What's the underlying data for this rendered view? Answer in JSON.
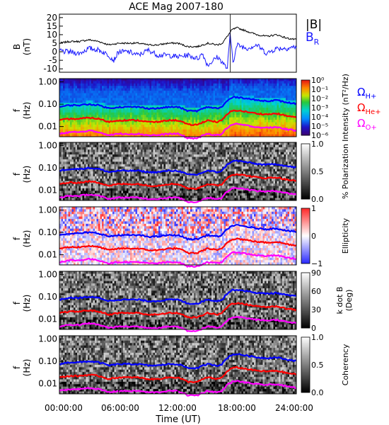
{
  "figure": {
    "title": "ACE Mag 2007-180",
    "xlabel": "Time (UT)",
    "xticks": [
      "00:00:00",
      "06:00:00",
      "12:00:00",
      "18:00:00",
      "24:00:00"
    ]
  },
  "chart_data": [
    {
      "type": "line",
      "panel": "magnetic-field",
      "ylabel_top": "B",
      "ylabel_bottom": "(nT)",
      "yticks": [
        "20",
        "15",
        "10",
        "5",
        "0",
        "-5",
        "-10"
      ],
      "ylim": [
        -12,
        22
      ],
      "xlim": [
        0,
        24
      ],
      "series": [
        {
          "name": "|B|",
          "color": "#000000",
          "x": [
            0,
            1,
            2,
            3,
            4,
            5,
            6,
            7,
            8,
            9,
            10,
            11,
            12,
            13,
            14,
            15,
            16,
            16.5,
            17,
            17.5,
            18,
            19,
            20,
            21,
            22,
            23,
            24
          ],
          "values": [
            5,
            6,
            6,
            7,
            6,
            4,
            5,
            5,
            5,
            4,
            4,
            5,
            5,
            3,
            3,
            5,
            4,
            5,
            9,
            13,
            14,
            12,
            10,
            9,
            10,
            8,
            7
          ]
        },
        {
          "name": "B",
          "name_sub": "R",
          "color": "#1a1aff",
          "x": [
            0,
            0.5,
            1,
            2,
            3,
            4,
            5,
            5.5,
            6,
            7,
            8,
            9,
            10,
            11,
            12,
            13,
            14,
            14.5,
            15,
            16,
            16.5,
            17,
            17.3,
            17.6,
            18,
            19,
            20,
            21,
            22,
            23,
            24
          ],
          "values": [
            1,
            0,
            0,
            -1,
            2,
            1,
            -2,
            -5,
            0,
            0,
            -2,
            1,
            -2,
            -2,
            -3,
            -2,
            -4,
            -1,
            -8,
            -3,
            -6,
            -10,
            10,
            -6,
            4,
            2,
            4,
            -1,
            2,
            2,
            3
          ]
        }
      ]
    },
    {
      "type": "heatmap",
      "panel": "power-spectrum",
      "colormap": "rainbow",
      "ylabel_top": "f",
      "ylabel_bottom": "(Hz)",
      "yticks": [
        "1.00",
        "0.10",
        "0.01"
      ],
      "colorbar_label": "Intensity (nT²/Hz)",
      "colorbar_ticks": [
        "10⁰",
        "10⁻¹",
        "10⁻²",
        "10⁻³",
        "10⁻⁴",
        "10⁻⁵",
        "10⁻⁶"
      ],
      "gyro_labels": [
        {
          "symbol": "Ω",
          "sub": "H+",
          "color": "#0000ff"
        },
        {
          "symbol": "Ω",
          "sub": "He+",
          "color": "#ff0000"
        },
        {
          "symbol": "Ω",
          "sub": "O+",
          "color": "#ff00ff"
        }
      ]
    },
    {
      "type": "heatmap",
      "panel": "polarization",
      "colormap": "gray",
      "ylabel_top": "f",
      "ylabel_bottom": "(Hz)",
      "yticks": [
        "1.00",
        "0.10",
        "0.01"
      ],
      "colorbar_label": "% Polarization",
      "colorbar_ticks": [
        "1.0",
        "0.5",
        "0.0"
      ]
    },
    {
      "type": "heatmap",
      "panel": "ellipticity",
      "colormap": "bluered",
      "ylabel_top": "f",
      "ylabel_bottom": "(Hz)",
      "yticks": [
        "1.00",
        "0.10",
        "0.01"
      ],
      "colorbar_label": "Ellipticity",
      "colorbar_ticks": [
        "1",
        "0",
        "−1"
      ]
    },
    {
      "type": "heatmap",
      "panel": "kdotb",
      "colormap": "gray",
      "ylabel_top": "f",
      "ylabel_bottom": "(Hz)",
      "yticks": [
        "1.00",
        "0.10",
        "0.01"
      ],
      "colorbar_label": "k dot B",
      "colorbar_label2": "(Deg)",
      "colorbar_ticks": [
        "90",
        "60",
        "30",
        "0"
      ]
    },
    {
      "type": "heatmap",
      "panel": "coherency",
      "colormap": "gray",
      "ylabel_top": "f",
      "ylabel_bottom": "(Hz)",
      "yticks": [
        "1.00",
        "0.10",
        "0.01"
      ],
      "colorbar_label": "Coherency",
      "colorbar_ticks": [
        "1.0",
        "0.5",
        "0.0"
      ]
    }
  ],
  "gyrofrequency_curves": {
    "x": [
      0,
      1,
      2,
      3,
      4,
      5,
      6,
      7,
      8,
      9,
      10,
      11,
      12,
      13,
      14,
      15,
      16,
      16.5,
      17,
      17.5,
      18,
      19,
      20,
      21,
      22,
      23,
      24
    ],
    "H+_hz": [
      0.075,
      0.09,
      0.09,
      0.1,
      0.09,
      0.065,
      0.075,
      0.075,
      0.075,
      0.065,
      0.065,
      0.075,
      0.075,
      0.05,
      0.05,
      0.075,
      0.065,
      0.075,
      0.14,
      0.2,
      0.21,
      0.18,
      0.15,
      0.14,
      0.15,
      0.12,
      0.105
    ],
    "He+_hz": [
      0.019,
      0.022,
      0.022,
      0.025,
      0.022,
      0.016,
      0.019,
      0.019,
      0.019,
      0.016,
      0.016,
      0.019,
      0.019,
      0.012,
      0.012,
      0.019,
      0.016,
      0.019,
      0.035,
      0.05,
      0.053,
      0.045,
      0.038,
      0.035,
      0.038,
      0.03,
      0.026
    ],
    "O+_hz": [
      0.0047,
      0.0056,
      0.0056,
      0.0065,
      0.0056,
      0.0041,
      0.0047,
      0.0047,
      0.0047,
      0.0041,
      0.0041,
      0.0047,
      0.0047,
      0.003,
      0.003,
      0.0047,
      0.0041,
      0.0047,
      0.0088,
      0.012,
      0.013,
      0.011,
      0.0094,
      0.0088,
      0.0094,
      0.0075,
      0.0066
    ]
  }
}
